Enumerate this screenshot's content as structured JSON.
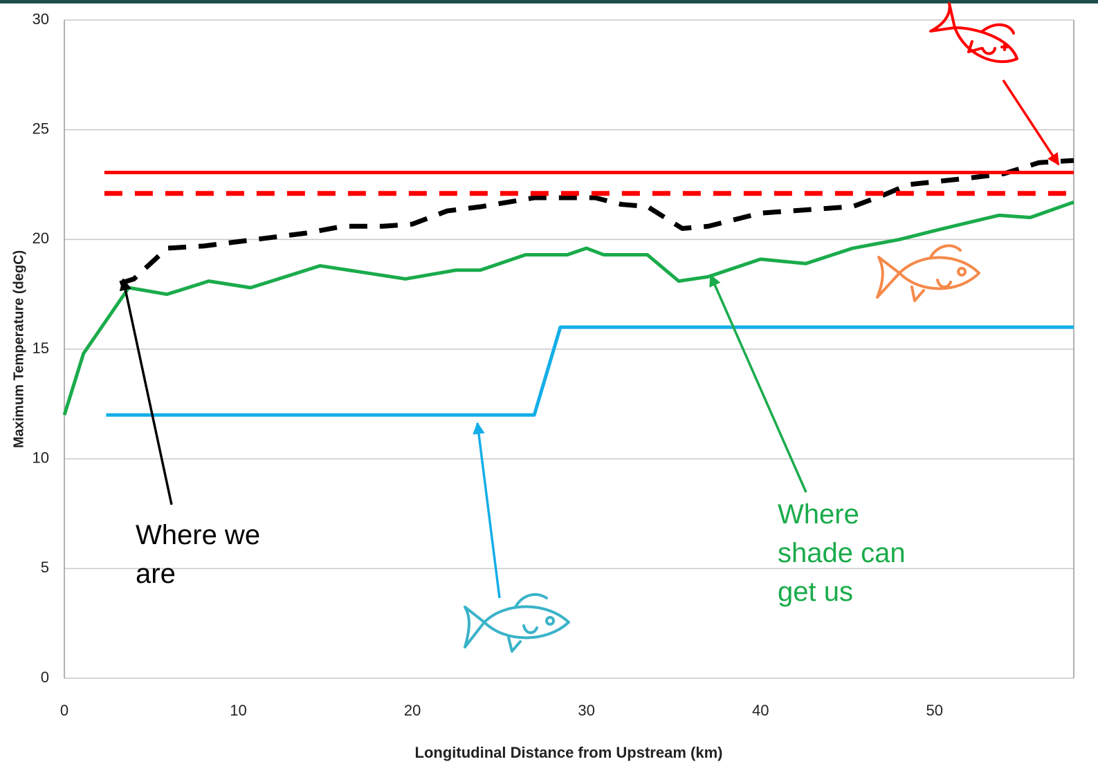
{
  "chart_data": {
    "type": "line",
    "xlabel": "Longitudinal Distance from Upstream (km)",
    "ylabel": "Maximum Temperature (degC)",
    "xlim": [
      0,
      58
    ],
    "xticks": [
      0,
      10,
      20,
      30,
      40,
      50
    ],
    "ylim": [
      0,
      30
    ],
    "yticks": [
      0,
      5,
      10,
      15,
      20,
      25,
      30
    ],
    "grid": true,
    "series": [
      {
        "color": "#1aab4b",
        "dash": false,
        "x": [
          0,
          1.1,
          3.7,
          5.9,
          8.3,
          10.7,
          14.7,
          19.6,
          22.5,
          23.9,
          26.5,
          28.9,
          30,
          31,
          33.5,
          35.3,
          37,
          40,
          42.6,
          45.3,
          48,
          50,
          53.7,
          55.5,
          58
        ],
        "values": [
          12,
          14.8,
          17.8,
          17.5,
          18.1,
          17.8,
          18.8,
          18.2,
          18.6,
          18.6,
          19.3,
          19.3,
          19.6,
          19.3,
          19.3,
          18.1,
          18.3,
          19.1,
          18.9,
          19.6,
          20,
          20.4,
          21.1,
          21,
          21.7
        ]
      },
      {
        "color": "#000000",
        "dash": true,
        "x": [
          3.2,
          4,
          5.9,
          8,
          11,
          14,
          16,
          18.3,
          20,
          22,
          24,
          27,
          29,
          30.5,
          32,
          33.5,
          35.5,
          37,
          40,
          45.3,
          47,
          48.5,
          52,
          54,
          56,
          58
        ],
        "values": [
          18,
          18.2,
          19.6,
          19.7,
          20,
          20.3,
          20.6,
          20.6,
          20.7,
          21.3,
          21.5,
          21.9,
          21.9,
          21.9,
          21.6,
          21.5,
          20.5,
          20.6,
          21.2,
          21.5,
          22,
          22.5,
          22.8,
          23,
          23.5,
          23.6
        ]
      },
      {
        "color": "#ff0000",
        "dash": false,
        "x": [
          2.3,
          58
        ],
        "values": [
          23.05,
          23.05
        ]
      },
      {
        "color": "#ff0000",
        "dash": true,
        "x": [
          2.3,
          58
        ],
        "values": [
          22.1,
          22.1
        ]
      },
      {
        "color": "#14aee8",
        "dash": false,
        "x": [
          2.4,
          27,
          28.5,
          58
        ],
        "values": [
          12,
          12,
          16,
          16
        ]
      }
    ],
    "annotations": [
      {
        "text": "Where we are",
        "color": "#000000"
      },
      {
        "text": "Where shade can get us",
        "color": "#1aab4b"
      }
    ]
  }
}
